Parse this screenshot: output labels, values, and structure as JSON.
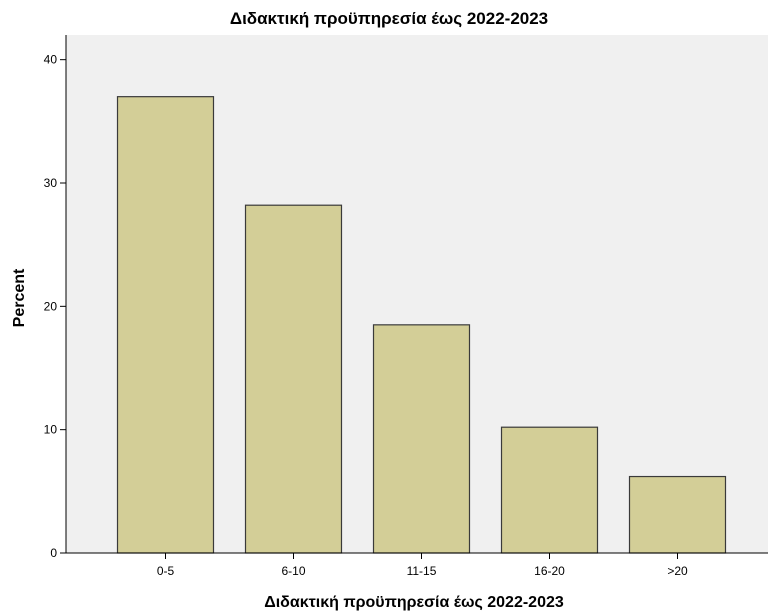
{
  "chart_data": {
    "type": "bar",
    "title": "Διδακτική προϋπηρεσία έως 2022-2023",
    "xlabel": "Διδακτική προϋπηρεσία έως 2022-2023",
    "ylabel": "Percent",
    "categories": [
      "0-5",
      "6-10",
      "11-15",
      "16-20",
      ">20"
    ],
    "values": [
      37.0,
      28.2,
      18.5,
      10.2,
      6.2
    ],
    "ylim": [
      0,
      42
    ],
    "yticks": [
      0,
      10,
      20,
      30,
      40
    ],
    "grid": false,
    "legend": "none",
    "colors": {
      "bar_fill": "#d3ce97",
      "bar_stroke": "#3a3a3a",
      "plot_background": "#f0f0f0",
      "axis": "#000000"
    }
  }
}
